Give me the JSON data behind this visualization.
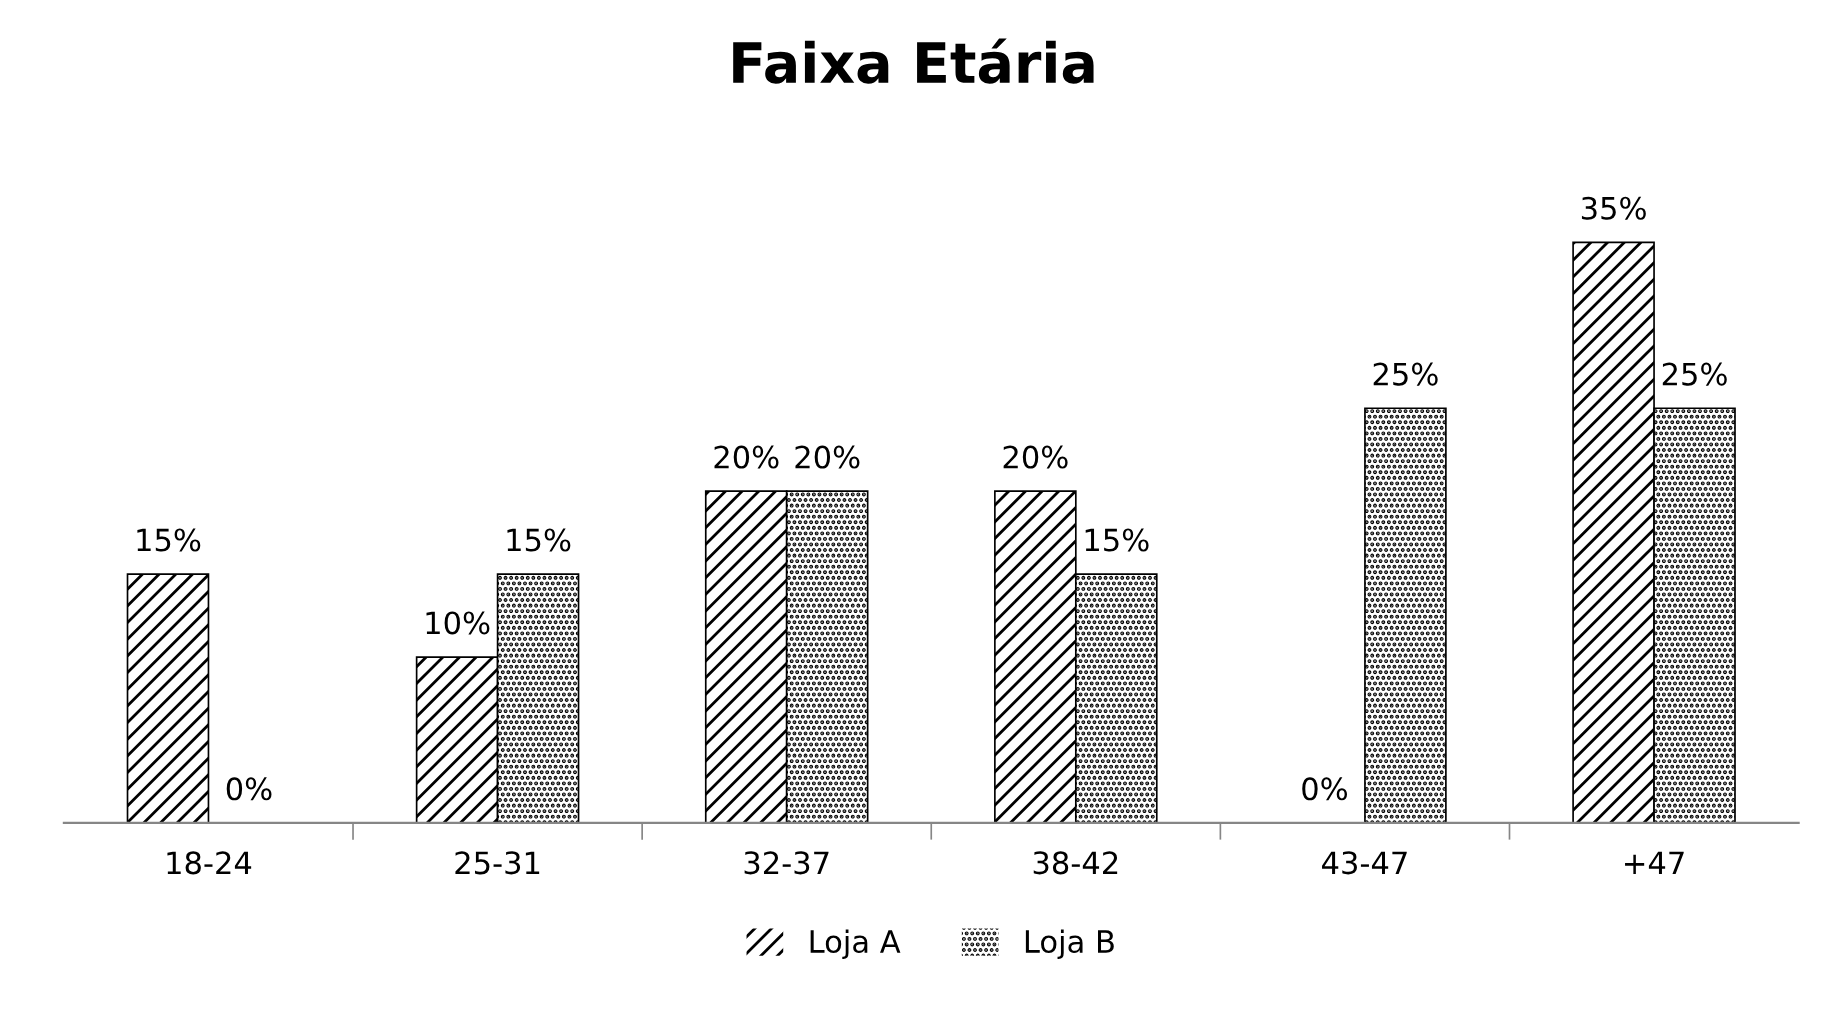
{
  "chart_data": {
    "type": "bar",
    "title": "Faixa Etária",
    "categories": [
      "18-24",
      "25-31",
      "32-37",
      "38-42",
      "43-47",
      "+47"
    ],
    "series": [
      {
        "name": "Loja A",
        "color": "#000000",
        "values": [
          15,
          10,
          20,
          20,
          0,
          35
        ],
        "value_labels": [
          "15%",
          "10%",
          "20%",
          "20%",
          "0%",
          "35%"
        ]
      },
      {
        "name": "Loja B",
        "color": "#000000",
        "values": [
          0,
          15,
          20,
          15,
          25,
          25
        ],
        "value_labels": [
          "0%",
          "15%",
          "20%",
          "15%",
          "25%",
          "25%"
        ]
      }
    ],
    "legend": "bottom",
    "grid": false
  }
}
